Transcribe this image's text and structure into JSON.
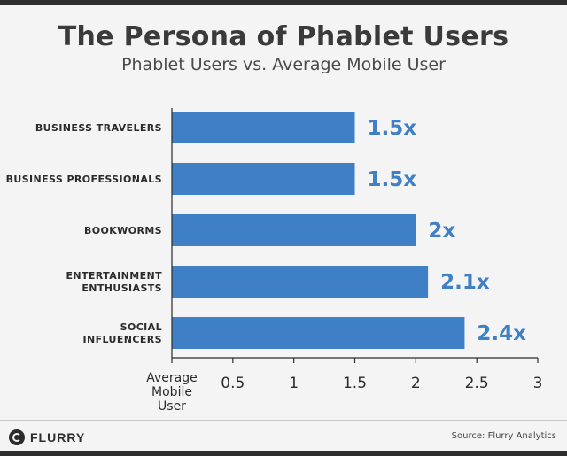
{
  "chart_data": {
    "type": "bar",
    "orientation": "horizontal",
    "title": "The Persona of Phablet Users",
    "subtitle": "Phablet Users vs. Average Mobile User",
    "categories": [
      [
        "BUSINESS TRAVELERS"
      ],
      [
        "BUSINESS PROFESSIONALS"
      ],
      [
        "BOOKWORMS"
      ],
      [
        "ENTERTAINMENT",
        "ENTHUSIASTS"
      ],
      [
        "SOCIAL",
        "INFLUENCERS"
      ]
    ],
    "values": [
      1.5,
      1.5,
      2,
      2.1,
      2.4
    ],
    "value_labels": [
      "1.5x",
      "1.5x",
      "2x",
      "2.1x",
      "2.4x"
    ],
    "xlim": [
      0,
      3
    ],
    "x_ticks": [
      0,
      0.5,
      1,
      1.5,
      2,
      2.5,
      3
    ],
    "x_tick_labels": [
      [
        "Average",
        "Mobile",
        "User"
      ],
      [
        "0.5"
      ],
      [
        "1"
      ],
      [
        "1.5"
      ],
      [
        "2"
      ],
      [
        "2.5"
      ],
      [
        "3"
      ]
    ],
    "bar_color": "#3e7fc6",
    "value_label_color": "#3e7fc6",
    "grid": false
  },
  "footer": {
    "logo_text": "FLURRY",
    "source": "Source: Flurry Analytics"
  }
}
